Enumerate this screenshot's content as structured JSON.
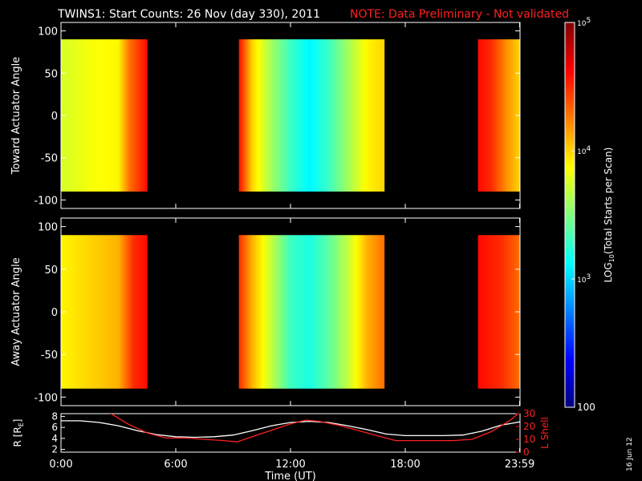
{
  "header": {
    "title": "TWINS1: Start Counts: 26 Nov (day 330), 2011",
    "note": "NOTE: Data Preliminary - Not validated",
    "title_color": "#ffffff",
    "note_color": "#ff2020"
  },
  "side_label": "16 Jun 12",
  "chart_data": [
    {
      "type": "heatmap",
      "id": "toward",
      "ylabel": "Toward Actuator Angle",
      "ylim": [
        -110,
        110
      ],
      "y_ticks": [
        100,
        50,
        0,
        -50,
        -100
      ],
      "y_range_data": [
        -90,
        90
      ],
      "xlim_hours": [
        0,
        24
      ],
      "data_segments_hours": [
        [
          0.0,
          4.5
        ],
        [
          9.3,
          16.9
        ],
        [
          21.8,
          24.0
        ]
      ],
      "profile": [
        {
          "t": 0.0,
          "log10": 3.75
        },
        {
          "t": 1.5,
          "log10": 3.85
        },
        {
          "t": 3.0,
          "log10": 3.9
        },
        {
          "t": 3.6,
          "log10": 4.3
        },
        {
          "t": 4.2,
          "log10": 4.5
        },
        {
          "t": 4.5,
          "log10": 4.6
        },
        {
          "t": 9.3,
          "log10": 4.6
        },
        {
          "t": 10.0,
          "log10": 4.0
        },
        {
          "t": 11.0,
          "log10": 3.6
        },
        {
          "t": 12.0,
          "log10": 3.3
        },
        {
          "t": 13.0,
          "log10": 3.1
        },
        {
          "t": 14.0,
          "log10": 3.3
        },
        {
          "t": 15.0,
          "log10": 3.6
        },
        {
          "t": 16.0,
          "log10": 3.9
        },
        {
          "t": 16.9,
          "log10": 4.0
        },
        {
          "t": 21.8,
          "log10": 4.6
        },
        {
          "t": 22.5,
          "log10": 4.5
        },
        {
          "t": 23.3,
          "log10": 4.2
        },
        {
          "t": 24.0,
          "log10": 4.0
        }
      ]
    },
    {
      "type": "heatmap",
      "id": "away",
      "ylabel": "Away Actuator Angle",
      "ylim": [
        -110,
        110
      ],
      "y_ticks": [
        100,
        50,
        0,
        -50,
        -100
      ],
      "y_range_data": [
        -90,
        90
      ],
      "xlim_hours": [
        0,
        24
      ],
      "data_segments_hours": [
        [
          0.0,
          4.5
        ],
        [
          9.3,
          16.9
        ],
        [
          21.8,
          24.0
        ]
      ],
      "profile": [
        {
          "t": 0.0,
          "log10": 3.9
        },
        {
          "t": 1.5,
          "log10": 4.0
        },
        {
          "t": 3.0,
          "log10": 4.1
        },
        {
          "t": 3.8,
          "log10": 4.5
        },
        {
          "t": 4.5,
          "log10": 4.6
        },
        {
          "t": 9.3,
          "log10": 4.5
        },
        {
          "t": 10.0,
          "log10": 4.1
        },
        {
          "t": 11.0,
          "log10": 3.7
        },
        {
          "t": 12.0,
          "log10": 3.3
        },
        {
          "t": 13.0,
          "log10": 3.2
        },
        {
          "t": 14.0,
          "log10": 3.4
        },
        {
          "t": 15.0,
          "log10": 3.7
        },
        {
          "t": 16.0,
          "log10": 4.1
        },
        {
          "t": 16.9,
          "log10": 4.3
        },
        {
          "t": 21.8,
          "log10": 4.6
        },
        {
          "t": 23.0,
          "log10": 4.5
        },
        {
          "t": 24.0,
          "log10": 4.3
        }
      ]
    },
    {
      "type": "line",
      "id": "orbit",
      "ylabel": "R [R",
      "ylabel_sub": "E",
      "ylabel_close": "]",
      "ylim": [
        1.5,
        8.5
      ],
      "y_ticks": [
        8,
        6,
        4,
        2
      ],
      "ylabel_right": "L Shell",
      "ylim_right": [
        0,
        30
      ],
      "y_ticks_right": [
        30,
        20,
        10,
        0
      ],
      "series": [
        {
          "color": "#ffffff",
          "axis": "left",
          "x": [
            0.0,
            1.0,
            2.0,
            3.0,
            4.0,
            5.0,
            6.0,
            7.0,
            8.0,
            9.0,
            10.0,
            11.0,
            12.0,
            13.0,
            14.0,
            15.0,
            16.0,
            17.0,
            18.0,
            19.0,
            20.0,
            21.0,
            22.0,
            23.0,
            23.98
          ],
          "y": [
            7.2,
            7.2,
            6.9,
            6.3,
            5.4,
            4.7,
            4.3,
            4.2,
            4.3,
            4.6,
            5.4,
            6.3,
            6.9,
            7.1,
            6.9,
            6.3,
            5.6,
            4.8,
            4.5,
            4.5,
            4.5,
            4.6,
            5.3,
            6.4,
            7.0
          ]
        },
        {
          "color": "#ff2020",
          "axis": "right",
          "x": [
            2.5,
            3.5,
            4.5,
            5.5,
            6.5,
            7.5,
            8.5,
            9.2,
            10.0,
            11.0,
            12.0,
            12.8,
            13.5,
            14.5,
            15.5,
            16.5,
            17.5,
            18.5,
            19.5,
            20.5,
            21.5,
            22.5,
            23.5,
            23.98
          ],
          "y": [
            31,
            22,
            15,
            11,
            11,
            10,
            9,
            8,
            12,
            17,
            22,
            25,
            24,
            21,
            17,
            13,
            9,
            9,
            9,
            9,
            10,
            16,
            25,
            31
          ]
        }
      ]
    }
  ],
  "colorbar": {
    "label_prefix": "LOG",
    "label_sub": "10",
    "label_suffix": "(Total Starts per Scan)",
    "range_log10": [
      2.0,
      5.0
    ],
    "tick_base": "10",
    "ticks": [
      {
        "label": "100",
        "log10": 2
      },
      {
        "label": "3",
        "log10": 3
      },
      {
        "label": "4",
        "log10": 4
      },
      {
        "label": "5",
        "log10": 5
      }
    ]
  },
  "x_axis": {
    "label": "Time (UT)",
    "ticks": [
      {
        "label": "0:00",
        "hours": 0
      },
      {
        "label": "6:00",
        "hours": 6
      },
      {
        "label": "12:00",
        "hours": 12
      },
      {
        "label": "18:00",
        "hours": 18
      },
      {
        "label": "23:59",
        "hours": 23.98
      }
    ]
  }
}
